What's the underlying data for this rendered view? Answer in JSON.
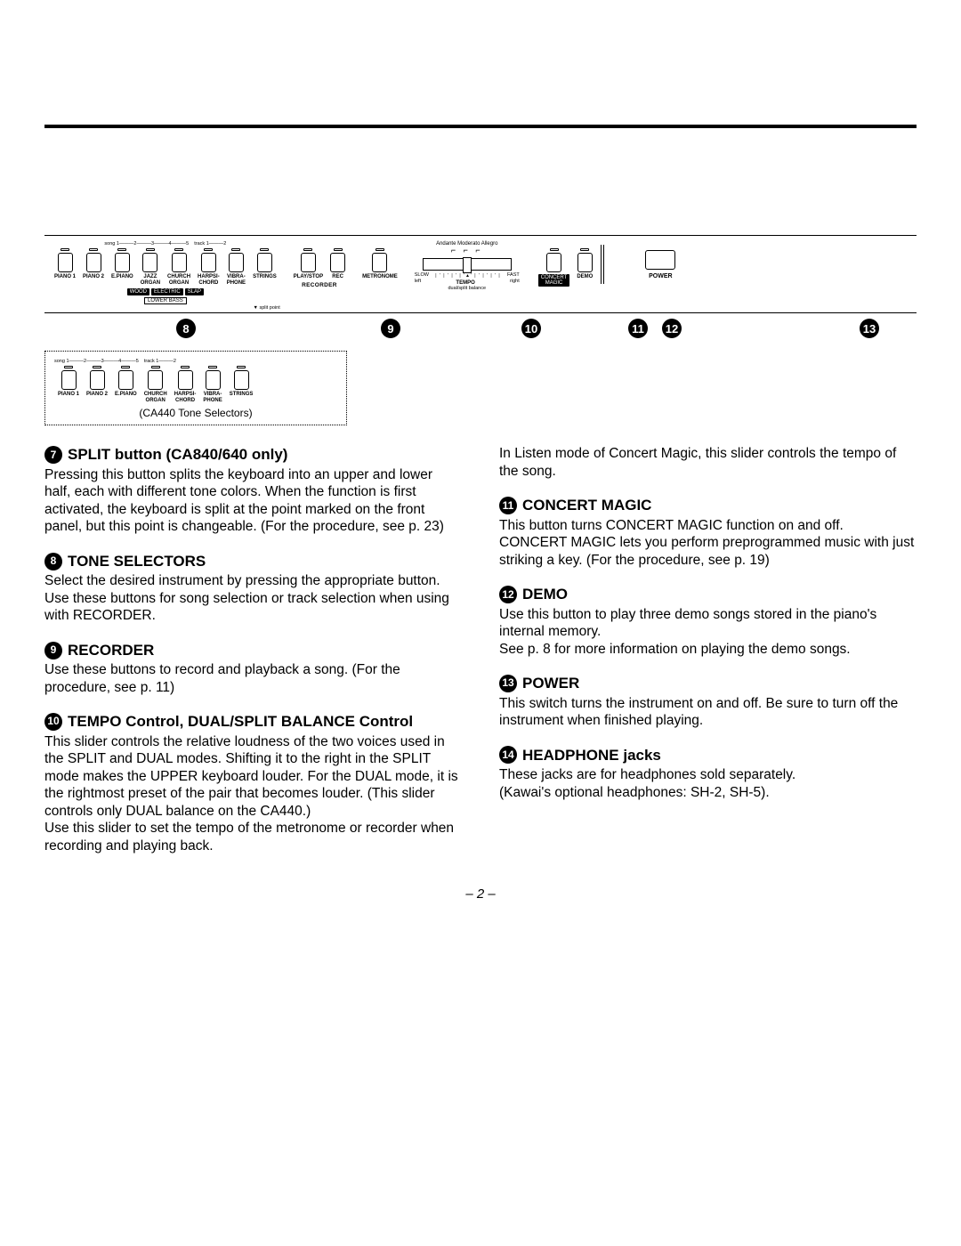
{
  "panel": {
    "song_header": "song 1———2———3———4———5    track 1———2",
    "tone_buttons": [
      "PIANO 1",
      "PIANO 2",
      "E.PIANO",
      "JAZZ\nORGAN",
      "CHURCH\nORGAN",
      "HARPSI-\nCHORD",
      "VIBRA-\nPHONE",
      "STRINGS"
    ],
    "lower_tags": [
      "WOOD",
      "ELECTRIC",
      "SLAP"
    ],
    "lower_bass": "LOWER BASS",
    "split_point": "▼ split point",
    "recorder_buttons": [
      "PLAY/STOP",
      "REC"
    ],
    "recorder_label": "RECORDER",
    "metronome": "METRONOME",
    "tempo_top": "Andante   Moderato   Allegro",
    "tempo_ticks": "| ' | ' | ' | '▲' | ' | ' | ' |",
    "tempo_slow": "SLOW",
    "tempo_fast": "FAST",
    "tempo_left": "left",
    "tempo_right": "right",
    "tempo_label": "TEMPO",
    "tempo_sub": "dual/split balance",
    "concert": "CONCERT\nMAGIC",
    "demo": "DEMO",
    "power": "POWER"
  },
  "numbers": {
    "n8": "8",
    "n9": "9",
    "n10": "10",
    "n11": "11",
    "n12": "12",
    "n13": "13"
  },
  "ca440": {
    "song_header": "song 1———2———3———4———5    track 1———2",
    "buttons": [
      "PIANO 1",
      "PIANO 2",
      "E.PIANO",
      "CHURCH\nORGAN",
      "HARPSI-\nCHORD",
      "VIBRA-\nPHONE",
      "STRINGS"
    ],
    "caption": "(CA440 Tone Selectors)"
  },
  "sections": {
    "s7": {
      "num": "7",
      "title": "SPLIT button (CA840/640 only)",
      "body": "Pressing this button splits the keyboard into an upper and lower half, each with different tone colors. When the function is first activated, the keyboard is split at the point marked on the front panel, but this point is changeable. (For the procedure, see p. 23)"
    },
    "s8": {
      "num": "8",
      "title": "TONE SELECTORS",
      "body": "Select the desired instrument by pressing the appropriate button.\nUse these buttons for song selection or track selection when using with RECORDER."
    },
    "s9": {
      "num": "9",
      "title": "RECORDER",
      "body": "Use these buttons to record and playback a song. (For the procedure, see p. 11)"
    },
    "s10": {
      "num": "10",
      "title": "TEMPO Control, DUAL/SPLIT BALANCE Control",
      "body": "This slider controls the relative loudness of the two voices used in the SPLIT and DUAL modes. Shifting it to the right in the SPLIT mode makes the UPPER keyboard louder.  For the DUAL mode, it is the rightmost preset of the pair that becomes louder.  (This slider controls only DUAL balance on the CA440.)\nUse this slider to set the tempo of the metronome or recorder when recording and playing back."
    },
    "s10b": {
      "body": "In Listen mode of Concert Magic, this slider controls the tempo of the song."
    },
    "s11": {
      "num": "11",
      "title": "CONCERT MAGIC",
      "body": "This button turns CONCERT MAGIC function on and off.\nCONCERT  MAGIC lets you perform preprogrammed music with just striking a key. (For the procedure, see p. 19)"
    },
    "s12": {
      "num": "12",
      "title": "DEMO",
      "body": "Use this button to play three demo songs stored in the piano's internal memory.\nSee p. 8 for more information on playing the demo songs."
    },
    "s13": {
      "num": "13",
      "title": "POWER",
      "body": "This switch turns the instrument on and off. Be sure to turn off the instrument when finished playing."
    },
    "s14": {
      "num": "14",
      "title": "HEADPHONE jacks",
      "body": "These jacks are for headphones sold separately.\n(Kawai's optional headphones: SH-2, SH-5)."
    }
  },
  "pagenum": "– 2 –"
}
